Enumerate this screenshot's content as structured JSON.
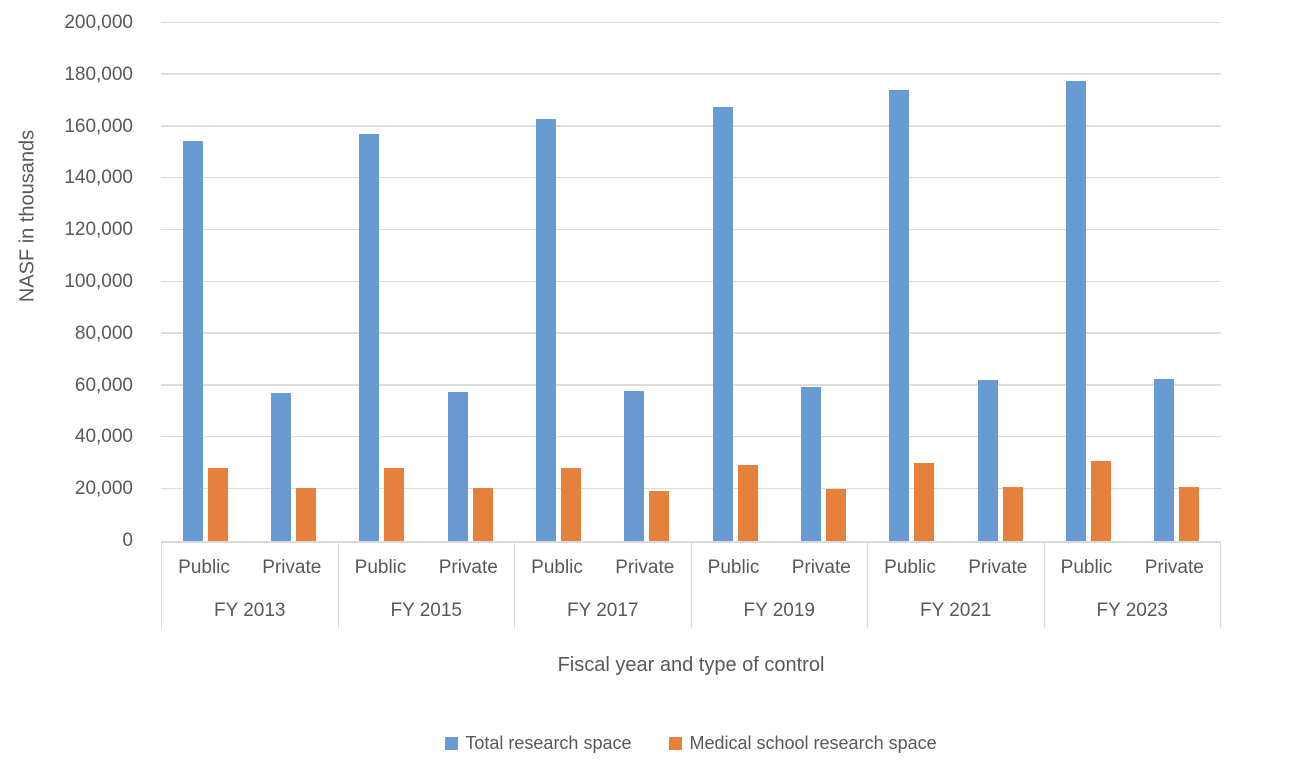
{
  "styles": {
    "background": "#FFFFFF",
    "text_color": "#595959",
    "gridline_color": "#DCDCDC",
    "axis_line_color": "#D9D9D9"
  },
  "chart_data": {
    "type": "bar",
    "title": "",
    "ylabel": "NASF in thousands",
    "xlabel": "Fiscal year and type of control",
    "ylim": [
      0,
      200000
    ],
    "ytick_interval": 20000,
    "yticks": [
      "0",
      "20,000",
      "40,000",
      "60,000",
      "80,000",
      "100,000",
      "120,000",
      "140,000",
      "160,000",
      "180,000",
      "200,000"
    ],
    "grid": true,
    "legend_position": "bottom",
    "groups": [
      "FY 2013",
      "FY 2015",
      "FY 2017",
      "FY 2019",
      "FY 2021",
      "FY 2023"
    ],
    "subgroups": [
      "Public",
      "Private"
    ],
    "categories": [
      "FY 2013 Public",
      "FY 2013 Private",
      "FY 2015 Public",
      "FY 2015 Private",
      "FY 2017 Public",
      "FY 2017 Private",
      "FY 2019 Public",
      "FY 2019 Private",
      "FY 2021 Public",
      "FY 2021 Private",
      "FY 2023 Public",
      "FY 2023 Private"
    ],
    "series": [
      {
        "name": "Total research space",
        "color": "#699BD2",
        "values": [
          154500,
          57000,
          157000,
          57500,
          163000,
          58000,
          167500,
          59500,
          174000,
          62000,
          177500,
          62500
        ]
      },
      {
        "name": "Medical school research space",
        "color": "#E5813C",
        "values": [
          28000,
          20500,
          28000,
          20500,
          28000,
          19500,
          29500,
          20000,
          30000,
          21000,
          31000,
          21000
        ]
      }
    ]
  }
}
